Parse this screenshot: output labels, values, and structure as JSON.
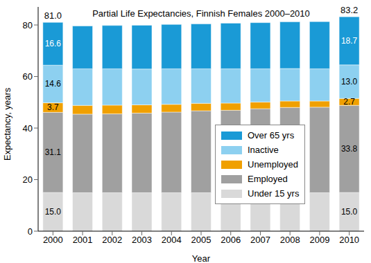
{
  "chart_data": {
    "type": "bar",
    "title": "Partial Life Expectancies, Finnish Females 2000–2010",
    "x_label": "Year",
    "y_label": "Expectancy, years",
    "categories": [
      "2000",
      "2001",
      "2002",
      "2003",
      "2004",
      "2005",
      "2006",
      "2007",
      "2008",
      "2009",
      "2010"
    ],
    "stacked": true,
    "grid": false,
    "legend": "right",
    "data_labels": true,
    "ylim": [
      0,
      87
    ],
    "yticks": [
      0,
      20,
      40,
      60,
      80
    ],
    "series": [
      {
        "name": "Under 15 yrs",
        "color": "#d9d9d9",
        "values": [
          15.0,
          14.9,
          14.9,
          14.9,
          14.9,
          14.9,
          14.8,
          14.9,
          14.9,
          14.9,
          15.0
        ],
        "value_labels": [
          "15.0",
          null,
          null,
          null,
          null,
          null,
          null,
          null,
          null,
          null,
          "15.0"
        ]
      },
      {
        "name": "Employed",
        "color": "#a0a0a0",
        "values": [
          31.1,
          30.5,
          30.6,
          30.9,
          31.3,
          31.8,
          32.1,
          32.6,
          33.1,
          33.2,
          33.8
        ],
        "value_labels": [
          "31.1",
          null,
          null,
          null,
          null,
          null,
          null,
          null,
          null,
          null,
          "33.8"
        ]
      },
      {
        "name": "Unemployed",
        "color": "#f0a000",
        "values": [
          3.7,
          3.4,
          3.4,
          3.2,
          3.0,
          2.9,
          2.8,
          2.6,
          2.5,
          2.4,
          2.7
        ],
        "value_labels": [
          "3.7",
          null,
          null,
          null,
          null,
          null,
          null,
          null,
          null,
          null,
          "2.7"
        ]
      },
      {
        "name": "Inactive",
        "color": "#8dd0f0",
        "values": [
          14.6,
          14.2,
          14.1,
          13.9,
          13.8,
          13.4,
          13.3,
          12.9,
          12.6,
          12.5,
          13.0
        ],
        "value_labels": [
          "14.6",
          null,
          null,
          null,
          null,
          null,
          null,
          null,
          null,
          null,
          "13.0"
        ]
      },
      {
        "name": "Over 65 yrs",
        "color": "#1a9ad6",
        "values": [
          16.6,
          16.6,
          16.8,
          17.0,
          17.2,
          17.4,
          17.7,
          17.9,
          18.1,
          18.3,
          18.7
        ],
        "value_labels": [
          "16.6",
          null,
          null,
          null,
          null,
          null,
          null,
          null,
          null,
          null,
          "18.7"
        ]
      }
    ],
    "annotations": [
      {
        "x": "2000",
        "y": 81.0,
        "text": "81.0"
      },
      {
        "x": "2010",
        "y": 83.2,
        "text": "83.2"
      }
    ]
  }
}
